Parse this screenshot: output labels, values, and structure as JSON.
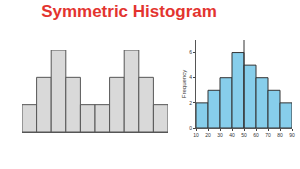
{
  "title": "Symmetric Histogram",
  "chart_data": [
    {
      "type": "histogram",
      "bins": [
        0,
        1,
        2,
        3,
        4,
        5,
        6,
        7,
        8,
        9,
        10
      ],
      "values": [
        1,
        2,
        3,
        2,
        1,
        1,
        2,
        3,
        2,
        1
      ],
      "color": "#d9d9d9",
      "xlim": [
        0,
        10
      ],
      "ylim": [
        0,
        3
      ],
      "tick_labels": false,
      "grid": false
    },
    {
      "type": "histogram",
      "bins": [
        10,
        20,
        30,
        40,
        50,
        60,
        70,
        80,
        90
      ],
      "values": [
        2,
        3,
        4,
        6,
        5,
        4,
        3,
        2
      ],
      "color": "#87ceeb",
      "xlim": [
        10,
        90
      ],
      "ylim": [
        0,
        7
      ],
      "xticks": [
        10,
        20,
        30,
        40,
        50,
        60,
        70,
        80,
        90
      ],
      "yticks": [
        0,
        2,
        4,
        6
      ],
      "y_label": "Frequency",
      "mean_line": 50,
      "grid": false
    }
  ]
}
